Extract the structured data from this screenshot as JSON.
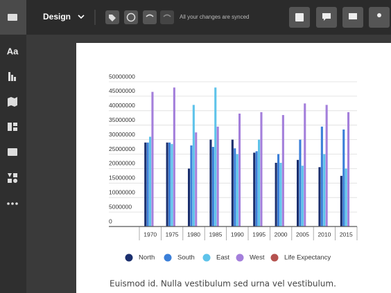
{
  "toolbar": {
    "menu": "Design",
    "status": "All your changes are synced"
  },
  "sidebar": {
    "text_tool": "Aa"
  },
  "chart_data": {
    "type": "bar",
    "categories": [
      "1970",
      "1975",
      "1980",
      "1985",
      "1990",
      "1995",
      "2000",
      "2005",
      "2010",
      "2015"
    ],
    "series": [
      {
        "name": "North",
        "color": "#1b2f6e",
        "values": [
          29000000,
          29000000,
          20000000,
          30000000,
          30000000,
          25500000,
          22000000,
          23000000,
          20500000,
          17500000
        ]
      },
      {
        "name": "South",
        "color": "#3b7fd9",
        "values": [
          29000000,
          29000000,
          28000000,
          27500000,
          27000000,
          26000000,
          25000000,
          30000000,
          34500000,
          33500000
        ]
      },
      {
        "name": "East",
        "color": "#5ec3ea",
        "values": [
          31000000,
          28500000,
          42000000,
          48000000,
          25000000,
          30000000,
          22000000,
          21000000,
          25000000,
          20000000
        ]
      },
      {
        "name": "West",
        "color": "#a47fdb",
        "values": [
          46500000,
          48000000,
          32500000,
          34500000,
          39000000,
          39500000,
          38500000,
          42500000,
          42000000,
          39500000
        ]
      },
      {
        "name": "Life Expectancy",
        "color": "#b5524f",
        "values": [
          70,
          71,
          72,
          73,
          74,
          75,
          76,
          77,
          78,
          79
        ]
      }
    ],
    "ylim": [
      0,
      50000000
    ],
    "yticks": [
      0,
      5000000,
      10000000,
      15000000,
      20000000,
      25000000,
      30000000,
      35000000,
      40000000,
      45000000,
      50000000
    ],
    "grid": true,
    "legend": "bottom"
  },
  "body_text": "Euismod id. Nulla vestibulum sed urna vel vestibulum."
}
